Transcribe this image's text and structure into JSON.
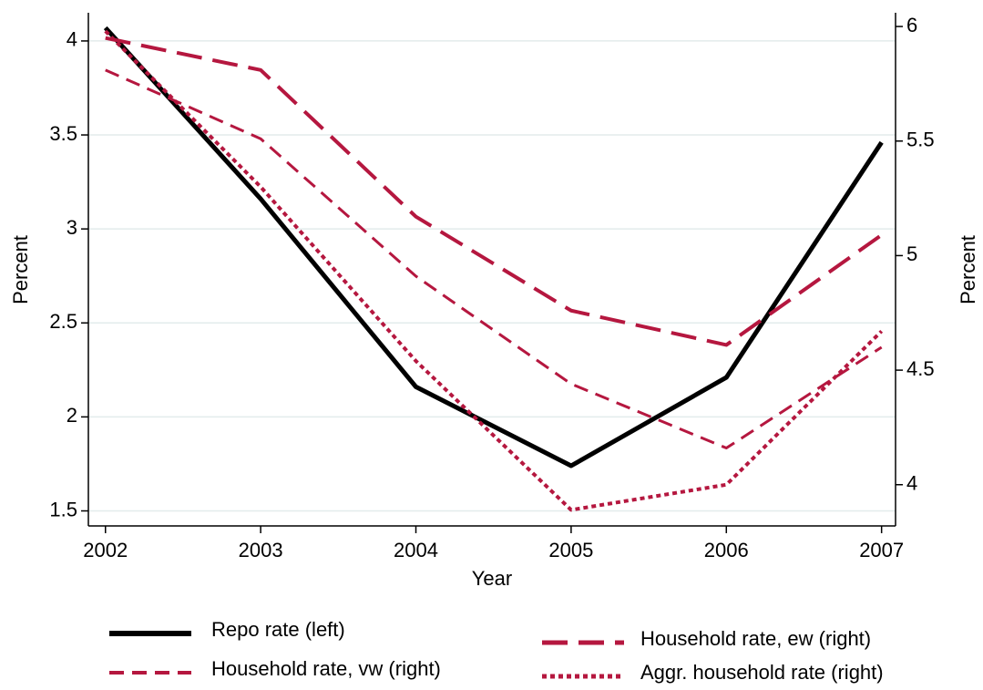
{
  "chart_data": {
    "type": "line",
    "x_label": "Year",
    "y_label": "Percent",
    "y2_label": "Percent",
    "x": [
      2002,
      2003,
      2004,
      2005,
      2006,
      2007
    ],
    "xlim": [
      2001.89,
      2007.09
    ],
    "xticks": [
      2002,
      2003,
      2004,
      2005,
      2006,
      2007
    ],
    "ylim": [
      1.42,
      4.15
    ],
    "yticks": [
      1.5,
      2,
      2.5,
      3,
      3.5,
      4
    ],
    "y2lim": [
      3.82,
      6.06
    ],
    "y2ticks": [
      4,
      4.5,
      5,
      5.5,
      6
    ],
    "grid": true,
    "series": [
      {
        "name": "Repo rate (left)",
        "color": "#000000",
        "dash": "solid",
        "values": [
          4.07,
          3.16,
          2.16,
          1.74,
          2.21,
          3.46
        ]
      },
      {
        "name": "Household rate, ew (right)",
        "color": "#b5173f",
        "dash": "long",
        "axis": "y2",
        "values": [
          5.95,
          5.81,
          5.17,
          4.76,
          4.61,
          5.09
        ]
      },
      {
        "name": "Household rate, vw (right)",
        "color": "#b5173f",
        "dash": "short",
        "axis": "y2",
        "values": [
          5.81,
          5.51,
          4.91,
          4.44,
          4.16,
          4.6
        ]
      },
      {
        "name": "Aggr. household rate (right)",
        "color": "#b5173f",
        "dash": "dot",
        "axis": "y2",
        "values": [
          5.98,
          5.3,
          4.54,
          3.89,
          4.0,
          4.67
        ]
      }
    ]
  }
}
